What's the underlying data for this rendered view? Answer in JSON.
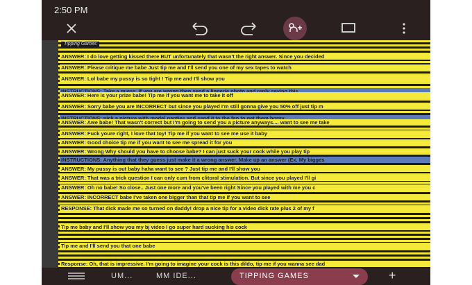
{
  "status_bar": {
    "time": "2:50 PM"
  },
  "sheet": {
    "title": "Tipping Games",
    "rows": [
      {
        "text": "ANSWER: I do love getting kissed there BUT unfortunately that wasn't the right answer. Since you decided",
        "color": "#f4ea3c"
      },
      {
        "text": "ANSWER: Please critique me babe  Just tip me and I'll send you one of my sex tapes to watch",
        "color": "#f4ea3c"
      },
      {
        "text": "ANSWER: Lol babe my pussy is so tight !  Tip me and I'll show you",
        "color": "#f4ea3c"
      },
      {
        "text": "INSTRUCTIONS: Take a guess. If you are wrong then send a lingerie photo and reply saying this",
        "color": "#5b7bb8"
      },
      {
        "text": "ANSWER: Here is your prize babe! Tip me if you want me to take it off",
        "color": "#f4ea3c"
      },
      {
        "text": "ANSWER: Sorry babe you are INCORRECT but since you played I'm still gonna give you 50% off just tip m",
        "color": "#f4ea3c"
      },
      {
        "text": "INSTRUCTIONS: pick a picture with model panties and send it to the fan to get them horny.",
        "color": "#5b7bb8"
      },
      {
        "text": "ANSWER: Awe babe! That wasn't correct but I'm going to send you a picture anyways.... want to see me take",
        "color": "#f4ea3c"
      },
      {
        "text": "ANSWER: Fuck youre right, I love that toy! Tip me if you want to see me use it baby",
        "color": "#f4ea3c"
      },
      {
        "text": "ANSWER: Good choice  tip me if you want to see me spread it for you",
        "color": "#f4ea3c"
      },
      {
        "text": "ANSWER: Wrong  Why should you have to choose babe? I can just suck your cock while you play  tip",
        "color": "#f4ea3c"
      },
      {
        "text": "INSTRUCTIONS: Anything that they guess just make it a wrong answer. Make up an answer (Ex. My bigges",
        "color": "#5b7bb8"
      },
      {
        "text": "ANSWER: My pussy is out baby haha want to see ? Just tip me and I'll show you",
        "color": "#f4ea3c"
      },
      {
        "text": "ANSWER: That was a trick question  I can only cum from clitoral stimulation. But since you played I'll gi",
        "color": "#f4ea3c"
      },
      {
        "text": "ANSWER: Oh no babe! So close.. Just one more and you've been right  Since you played with me you c",
        "color": "#f4ea3c"
      },
      {
        "text": "ANSWER: INCORRECT babe I've taken one bigger than that  tip me if you want to see",
        "color": "#f4ea3c"
      },
      {
        "text": "RESPONSE: That dick made me so turned on daddy!  drop a nice tip for a video dick rate plus 2 of my f",
        "color": "#f4ea3c"
      },
      {
        "text": "Tip me baby and I'll show you my bj video I go super hard sucking his cock",
        "color": "#f4ea3c"
      },
      {
        "text": "Tip me and I'll send you that one babe",
        "color": "#f4ea3c"
      },
      {
        "text": "Response: Oh, that is impressive. I'm going to imagine your cock is this dildo, tip me if you wanna see dad",
        "color": "#f4ea3c"
      }
    ]
  },
  "tabs": [
    "UM...",
    "MM IDE...",
    "TIPPING GAMES"
  ]
}
